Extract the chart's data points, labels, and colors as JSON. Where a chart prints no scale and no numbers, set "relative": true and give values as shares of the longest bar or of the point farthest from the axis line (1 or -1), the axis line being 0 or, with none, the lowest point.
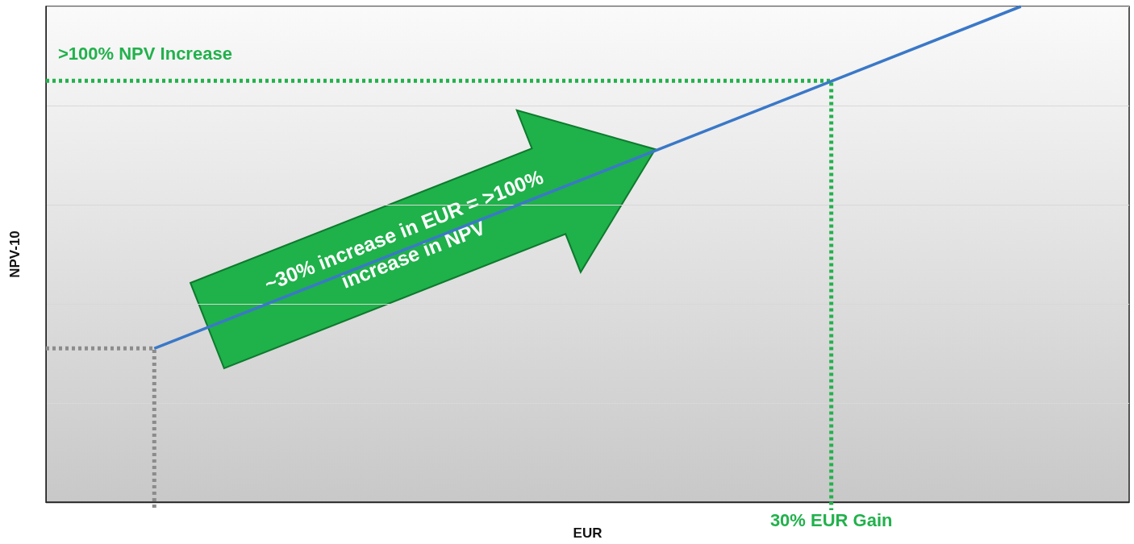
{
  "chart_data": {
    "type": "line",
    "relative": true,
    "xlabel": "EUR",
    "ylabel": "NPV-10",
    "categories": [
      null,
      null,
      null,
      null,
      null,
      null,
      null,
      null,
      null,
      null,
      null,
      null,
      null,
      null,
      null,
      null,
      null,
      null,
      null,
      null,
      null,
      null,
      null,
      null,
      null,
      null,
      null,
      null,
      null,
      null,
      null,
      null,
      null,
      null,
      null,
      null,
      null,
      null,
      null,
      null,
      null
    ],
    "series": [
      {
        "color": "#3a78c8",
        "values": [
          null,
          null,
          null,
          null,
          0.31,
          null,
          null,
          null,
          null,
          null,
          null,
          null,
          null,
          null,
          null,
          null,
          null,
          null,
          null,
          null,
          null,
          null,
          null,
          null,
          null,
          null,
          null,
          null,
          null,
          null,
          null,
          null,
          null,
          null,
          null,
          null,
          1,
          null,
          null,
          null,
          null
        ]
      }
    ],
    "ref_lines": [
      {
        "axis": "y",
        "value": 0.31,
        "color": "#8c8c8c",
        "line_style": "dotted"
      },
      {
        "axis": "y",
        "value": 0.85,
        "label": ">100% NPV Increase",
        "color": "#22b14c",
        "line_style": "dotted"
      }
    ],
    "annotations": [
      "~30% increase in EUR = >100% increase in NPV",
      "30% EUR Gain"
    ],
    "grid": "y",
    "marker": "none"
  }
}
